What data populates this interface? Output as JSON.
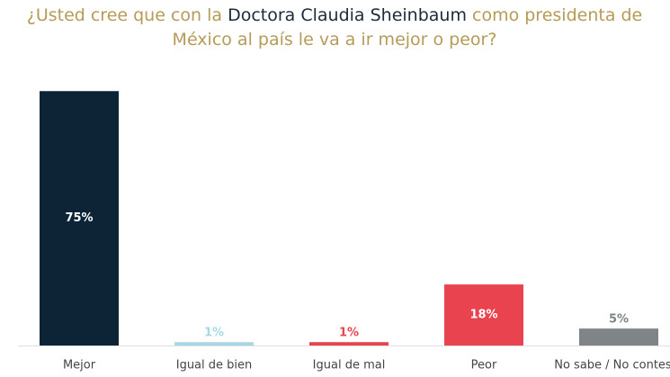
{
  "chart_data": {
    "type": "bar",
    "title": [
      [
        "¿Usted cree que con la ",
        "Doctora Claudia Sheinbaum",
        " como presidenta de"
      ],
      [
        "México al país le va a ir mejor o peor?"
      ]
    ],
    "categories": [
      "Mejor",
      "Igual de bien",
      "Igual de mal",
      "Peor",
      "No sabe / No contesta"
    ],
    "values": [
      75,
      1,
      1,
      18,
      5
    ],
    "value_labels": [
      "75%",
      "1%",
      "1%",
      "18%",
      "5%"
    ],
    "colors": [
      "#0d2436",
      "#a8d8e8",
      "#e8434f",
      "#e8434f",
      "#7f8487"
    ]
  }
}
